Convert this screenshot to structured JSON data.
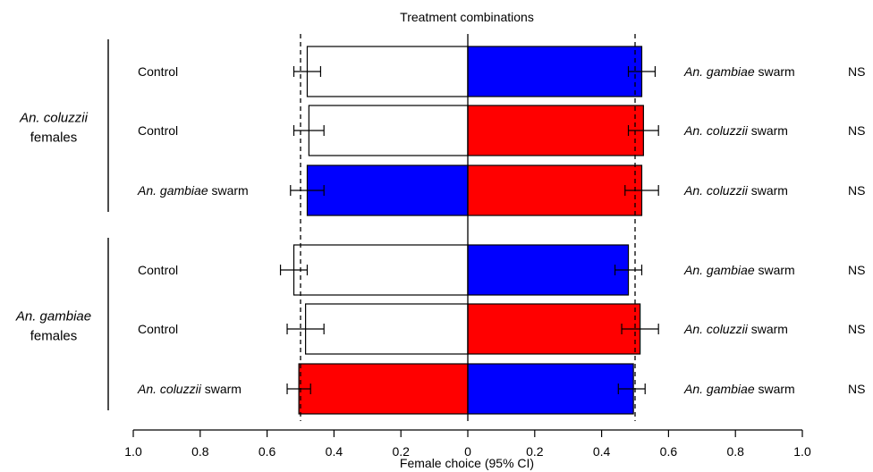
{
  "chart_data": {
    "type": "bar",
    "title": "Treatment combinations",
    "xlabel": "Female choice (95% CI)",
    "xlim": [
      -1.0,
      1.0
    ],
    "x_ticks": [
      -1.0,
      -0.8,
      -0.6,
      -0.4,
      -0.2,
      0,
      0.2,
      0.4,
      0.6,
      0.8,
      1.0
    ],
    "x_tick_labels": [
      "1.0",
      "0.8",
      "0.6",
      "0.4",
      "0.2",
      "0",
      "0.2",
      "0.4",
      "0.6",
      "0.8",
      "1.0"
    ],
    "reference_lines": [
      -0.5,
      0,
      0.5
    ],
    "colors": {
      "Control": "#ffffff",
      "An. gambiae swarm": "#0000ff",
      "An. coluzzii swarm": "#ff0000"
    },
    "groups": [
      {
        "label_species": "An. coluzzii",
        "label_rest": "females",
        "rows": [
          {
            "left": {
              "label_italic": "",
              "label_plain": "Control",
              "treatment": "Control",
              "value": 0.48,
              "ci": [
                0.44,
                0.52
              ]
            },
            "right": {
              "label_italic": "An. gambiae",
              "label_plain": " swarm",
              "treatment": "An. gambiae swarm",
              "value": 0.52,
              "ci": [
                0.48,
                0.56
              ]
            },
            "significance": "NS"
          },
          {
            "left": {
              "label_italic": "",
              "label_plain": "Control",
              "treatment": "Control",
              "value": 0.475,
              "ci": [
                0.43,
                0.52
              ]
            },
            "right": {
              "label_italic": "An. coluzzii",
              "label_plain": " swarm",
              "treatment": "An. coluzzii swarm",
              "value": 0.525,
              "ci": [
                0.48,
                0.57
              ]
            },
            "significance": "NS"
          },
          {
            "left": {
              "label_italic": "An. gambiae",
              "label_plain": " swarm",
              "treatment": "An. gambiae swarm",
              "value": 0.48,
              "ci": [
                0.43,
                0.53
              ]
            },
            "right": {
              "label_italic": "An. coluzzii",
              "label_plain": " swarm",
              "treatment": "An. coluzzii swarm",
              "value": 0.52,
              "ci": [
                0.47,
                0.57
              ]
            },
            "significance": "NS"
          }
        ]
      },
      {
        "label_species": "An. gambiae",
        "label_rest": "females",
        "rows": [
          {
            "left": {
              "label_italic": "",
              "label_plain": "Control",
              "treatment": "Control",
              "value": 0.52,
              "ci": [
                0.48,
                0.56
              ]
            },
            "right": {
              "label_italic": "An. gambiae",
              "label_plain": " swarm",
              "treatment": "An. gambiae swarm",
              "value": 0.48,
              "ci": [
                0.44,
                0.52
              ]
            },
            "significance": "NS"
          },
          {
            "left": {
              "label_italic": "",
              "label_plain": "Control",
              "treatment": "Control",
              "value": 0.485,
              "ci": [
                0.43,
                0.54
              ]
            },
            "right": {
              "label_italic": "An. coluzzii",
              "label_plain": " swarm",
              "treatment": "An. coluzzii swarm",
              "value": 0.515,
              "ci": [
                0.46,
                0.57
              ]
            },
            "significance": "NS"
          },
          {
            "left": {
              "label_italic": "An. coluzzii",
              "label_plain": " swarm",
              "treatment": "An. coluzzii swarm",
              "value": 0.505,
              "ci": [
                0.47,
                0.54
              ]
            },
            "right": {
              "label_italic": "An. gambiae",
              "label_plain": " swarm",
              "treatment": "An. gambiae swarm",
              "value": 0.495,
              "ci": [
                0.45,
                0.53
              ]
            },
            "significance": "NS"
          }
        ]
      }
    ]
  }
}
